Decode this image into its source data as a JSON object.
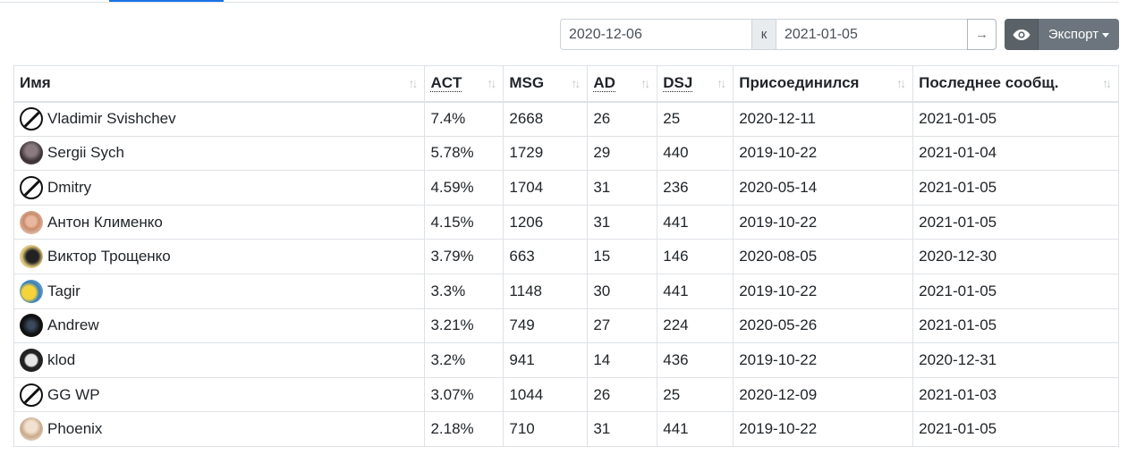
{
  "filters": {
    "date_from": "2020-12-06",
    "separator": "к",
    "date_to": "2021-01-05",
    "go_label": "→",
    "export_label": "Экспорт"
  },
  "table": {
    "columns": [
      "Имя",
      "ACT",
      "MSG",
      "AD",
      "DSJ",
      "Присоединился",
      "Последнее сообщ."
    ],
    "rows": [
      {
        "avatar": "no-avatar-icon",
        "name": "Vladimir Svishchev",
        "act": "7.4%",
        "msg": "2668",
        "ad": "26",
        "dsj": "25",
        "joined": "2020-12-11",
        "last": "2021-01-05"
      },
      {
        "avatar": "avatar-photo",
        "name": "Sergii Sych",
        "act": "5.78%",
        "msg": "1729",
        "ad": "29",
        "dsj": "440",
        "joined": "2019-10-22",
        "last": "2021-01-04"
      },
      {
        "avatar": "no-avatar-icon",
        "name": "Dmitry",
        "act": "4.59%",
        "msg": "1704",
        "ad": "31",
        "dsj": "236",
        "joined": "2020-05-14",
        "last": "2021-01-05"
      },
      {
        "avatar": "avatar-photo",
        "name": "Антон Клименко",
        "act": "4.15%",
        "msg": "1206",
        "ad": "31",
        "dsj": "441",
        "joined": "2019-10-22",
        "last": "2021-01-05"
      },
      {
        "avatar": "avatar-photo",
        "name": "Виктор Трощенко",
        "act": "3.79%",
        "msg": "663",
        "ad": "15",
        "dsj": "146",
        "joined": "2020-08-05",
        "last": "2020-12-30"
      },
      {
        "avatar": "avatar-photo",
        "name": "Tagir",
        "act": "3.3%",
        "msg": "1148",
        "ad": "30",
        "dsj": "441",
        "joined": "2019-10-22",
        "last": "2021-01-05"
      },
      {
        "avatar": "avatar-photo",
        "name": "Andrew",
        "act": "3.21%",
        "msg": "749",
        "ad": "27",
        "dsj": "224",
        "joined": "2020-05-26",
        "last": "2021-01-05"
      },
      {
        "avatar": "avatar-photo",
        "name": "klod",
        "act": "3.2%",
        "msg": "941",
        "ad": "14",
        "dsj": "436",
        "joined": "2019-10-22",
        "last": "2020-12-31"
      },
      {
        "avatar": "no-avatar-icon",
        "name": "GG WP",
        "act": "3.07%",
        "msg": "1044",
        "ad": "26",
        "dsj": "25",
        "joined": "2020-12-09",
        "last": "2021-01-03"
      },
      {
        "avatar": "avatar-photo",
        "name": "Phoenix",
        "act": "2.18%",
        "msg": "710",
        "ad": "31",
        "dsj": "441",
        "joined": "2019-10-22",
        "last": "2021-01-05"
      }
    ]
  }
}
